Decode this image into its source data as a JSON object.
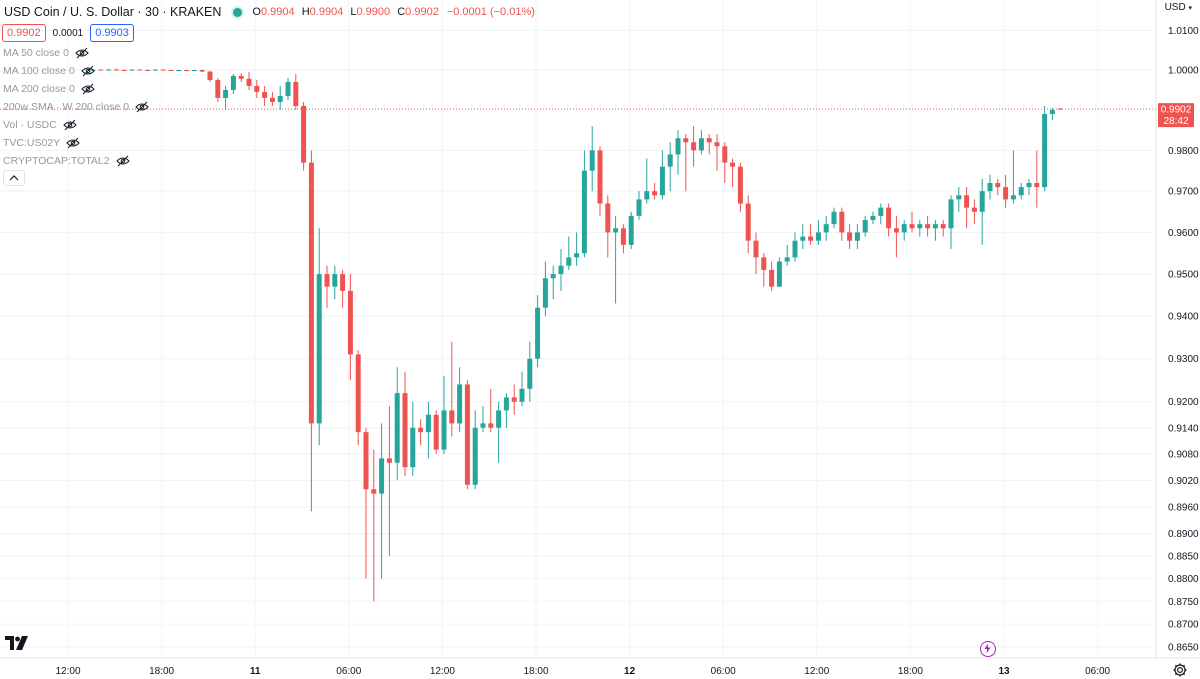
{
  "header": {
    "symbol": "USD Coin / U. S. Dollar · 30 · KRAKEN",
    "open_label": "O",
    "open": "0.9904",
    "high_label": "H",
    "high": "0.9904",
    "low_label": "L",
    "low": "0.9900",
    "close_label": "C",
    "close": "0.9902",
    "change": "−0.0001 (−0.01%)"
  },
  "quote": {
    "bid": "0.9902",
    "spread": "0.0001",
    "ask": "0.9903"
  },
  "indicators": [
    "MA 50 close 0",
    "MA 100 close 0",
    "MA 200 close 0",
    "200w SMA · W 200 close 0",
    "Vol · USDC",
    "TVC:US02Y",
    "CRYPTOCAP:TOTAL2"
  ],
  "axis": {
    "currency": "USD",
    "price_ticks": [
      "1.0100",
      "1.0000",
      "0.9800",
      "0.9700",
      "0.9600",
      "0.9500",
      "0.9400",
      "0.9300",
      "0.9200",
      "0.9140",
      "0.9080",
      "0.9020",
      "0.8960",
      "0.8900",
      "0.8850",
      "0.8800",
      "0.8750",
      "0.8700",
      "0.8650"
    ],
    "time_ticks": [
      "12:00",
      "18:00",
      "11",
      "06:00",
      "12:00",
      "18:00",
      "12",
      "06:00",
      "12:00",
      "18:00",
      "13",
      "06:00"
    ],
    "last_price": "0.9902",
    "countdown": "28:42"
  },
  "colors": {
    "up": "#26a69a",
    "down": "#ef5350",
    "grid": "#f0f3fa",
    "text": "#131722"
  },
  "chart_data": {
    "type": "candlestick",
    "symbol": "USD Coin / U. S. Dollar",
    "interval": "30",
    "exchange": "KRAKEN",
    "y_scale": "log",
    "ylim": [
      0.8625,
      1.0125
    ],
    "last_price": 0.9902,
    "candles": [
      [
        1.0,
        1.0003,
        0.9999,
        1.0001
      ],
      [
        1.0001,
        1.0002,
        0.9999,
        1.0
      ],
      [
        1.0,
        1.0003,
        0.9999,
        1.0001
      ],
      [
        1.0001,
        1.0004,
        0.9999,
        1.0
      ],
      [
        1.0,
        1.0002,
        0.9998,
        0.9999
      ],
      [
        0.9999,
        1.0002,
        0.9998,
        1.0001
      ],
      [
        1.0001,
        1.0002,
        0.9999,
        1.0
      ],
      [
        1.0,
        1.0002,
        0.9998,
        0.9999
      ],
      [
        0.9999,
        1.0002,
        0.9998,
        1.0001
      ],
      [
        1.0001,
        1.0002,
        0.9999,
        1.0
      ],
      [
        1.0,
        1.0001,
        0.9998,
        0.9999
      ],
      [
        0.9999,
        1.0001,
        0.9997,
        1.0
      ],
      [
        1.0,
        1.0001,
        0.9997,
        0.9998
      ],
      [
        0.9998,
        1.0001,
        0.9997,
        1.0
      ],
      [
        1.0,
        1.0001,
        0.9995,
        0.9996
      ],
      [
        0.9996,
        0.9998,
        0.997,
        0.9975
      ],
      [
        0.9975,
        0.998,
        0.992,
        0.993
      ],
      [
        0.993,
        0.996,
        0.99,
        0.995
      ],
      [
        0.995,
        0.999,
        0.994,
        0.9985
      ],
      [
        0.9985,
        0.9992,
        0.997,
        0.9978
      ],
      [
        0.9978,
        0.9995,
        0.995,
        0.996
      ],
      [
        0.996,
        0.9975,
        0.993,
        0.9945
      ],
      [
        0.9945,
        0.996,
        0.991,
        0.993
      ],
      [
        0.993,
        0.9945,
        0.991,
        0.992
      ],
      [
        0.992,
        0.996,
        0.99,
        0.9935
      ],
      [
        0.9935,
        0.998,
        0.9925,
        0.997
      ],
      [
        0.997,
        0.999,
        0.99,
        0.991
      ],
      [
        0.991,
        0.992,
        0.975,
        0.977
      ],
      [
        0.977,
        0.98,
        0.895,
        0.915
      ],
      [
        0.915,
        0.961,
        0.91,
        0.95
      ],
      [
        0.95,
        0.952,
        0.942,
        0.947
      ],
      [
        0.947,
        0.952,
        0.944,
        0.95
      ],
      [
        0.95,
        0.951,
        0.942,
        0.946
      ],
      [
        0.946,
        0.95,
        0.925,
        0.931
      ],
      [
        0.931,
        0.932,
        0.91,
        0.913
      ],
      [
        0.913,
        0.914,
        0.88,
        0.9
      ],
      [
        0.9,
        0.909,
        0.875,
        0.899
      ],
      [
        0.899,
        0.915,
        0.88,
        0.907
      ],
      [
        0.907,
        0.919,
        0.885,
        0.906
      ],
      [
        0.906,
        0.928,
        0.902,
        0.922
      ],
      [
        0.922,
        0.927,
        0.903,
        0.905
      ],
      [
        0.905,
        0.92,
        0.903,
        0.914
      ],
      [
        0.914,
        0.916,
        0.91,
        0.913
      ],
      [
        0.913,
        0.92,
        0.907,
        0.917
      ],
      [
        0.917,
        0.918,
        0.908,
        0.909
      ],
      [
        0.909,
        0.926,
        0.908,
        0.918
      ],
      [
        0.918,
        0.934,
        0.912,
        0.915
      ],
      [
        0.915,
        0.928,
        0.913,
        0.924
      ],
      [
        0.924,
        0.925,
        0.9,
        0.901
      ],
      [
        0.901,
        0.918,
        0.9,
        0.914
      ],
      [
        0.914,
        0.919,
        0.913,
        0.915
      ],
      [
        0.915,
        0.923,
        0.913,
        0.914
      ],
      [
        0.914,
        0.92,
        0.906,
        0.918
      ],
      [
        0.918,
        0.922,
        0.914,
        0.921
      ],
      [
        0.921,
        0.924,
        0.917,
        0.92
      ],
      [
        0.92,
        0.927,
        0.919,
        0.923
      ],
      [
        0.923,
        0.934,
        0.92,
        0.93
      ],
      [
        0.93,
        0.945,
        0.928,
        0.942
      ],
      [
        0.942,
        0.953,
        0.94,
        0.949
      ],
      [
        0.949,
        0.952,
        0.944,
        0.95
      ],
      [
        0.95,
        0.956,
        0.946,
        0.952
      ],
      [
        0.952,
        0.959,
        0.951,
        0.954
      ],
      [
        0.954,
        0.96,
        0.952,
        0.955
      ],
      [
        0.955,
        0.98,
        0.954,
        0.975
      ],
      [
        0.975,
        0.986,
        0.97,
        0.98
      ],
      [
        0.98,
        0.981,
        0.964,
        0.967
      ],
      [
        0.967,
        0.969,
        0.954,
        0.96
      ],
      [
        0.96,
        0.964,
        0.943,
        0.961
      ],
      [
        0.961,
        0.962,
        0.955,
        0.957
      ],
      [
        0.957,
        0.965,
        0.956,
        0.964
      ],
      [
        0.964,
        0.97,
        0.963,
        0.968
      ],
      [
        0.968,
        0.978,
        0.967,
        0.97
      ],
      [
        0.97,
        0.972,
        0.968,
        0.969
      ],
      [
        0.969,
        0.98,
        0.968,
        0.976
      ],
      [
        0.976,
        0.982,
        0.97,
        0.979
      ],
      [
        0.979,
        0.985,
        0.974,
        0.983
      ],
      [
        0.983,
        0.984,
        0.97,
        0.982
      ],
      [
        0.982,
        0.986,
        0.976,
        0.98
      ],
      [
        0.98,
        0.985,
        0.979,
        0.983
      ],
      [
        0.983,
        0.984,
        0.979,
        0.982
      ],
      [
        0.982,
        0.984,
        0.975,
        0.981
      ],
      [
        0.981,
        0.982,
        0.972,
        0.977
      ],
      [
        0.977,
        0.978,
        0.971,
        0.976
      ],
      [
        0.976,
        0.977,
        0.965,
        0.967
      ],
      [
        0.967,
        0.969,
        0.955,
        0.958
      ],
      [
        0.958,
        0.96,
        0.95,
        0.954
      ],
      [
        0.954,
        0.955,
        0.947,
        0.951
      ],
      [
        0.951,
        0.953,
        0.946,
        0.947
      ],
      [
        0.947,
        0.954,
        0.947,
        0.953
      ],
      [
        0.953,
        0.957,
        0.952,
        0.954
      ],
      [
        0.954,
        0.96,
        0.953,
        0.958
      ],
      [
        0.958,
        0.962,
        0.956,
        0.959
      ],
      [
        0.959,
        0.962,
        0.957,
        0.958
      ],
      [
        0.958,
        0.963,
        0.957,
        0.96
      ],
      [
        0.96,
        0.964,
        0.958,
        0.962
      ],
      [
        0.962,
        0.966,
        0.961,
        0.965
      ],
      [
        0.965,
        0.966,
        0.958,
        0.96
      ],
      [
        0.96,
        0.962,
        0.956,
        0.958
      ],
      [
        0.958,
        0.962,
        0.956,
        0.96
      ],
      [
        0.96,
        0.964,
        0.959,
        0.963
      ],
      [
        0.963,
        0.965,
        0.962,
        0.964
      ],
      [
        0.964,
        0.967,
        0.962,
        0.966
      ],
      [
        0.966,
        0.967,
        0.959,
        0.961
      ],
      [
        0.961,
        0.964,
        0.954,
        0.96
      ],
      [
        0.96,
        0.963,
        0.958,
        0.962
      ],
      [
        0.962,
        0.965,
        0.96,
        0.961
      ],
      [
        0.961,
        0.963,
        0.959,
        0.962
      ],
      [
        0.962,
        0.964,
        0.959,
        0.961
      ],
      [
        0.961,
        0.963,
        0.958,
        0.962
      ],
      [
        0.962,
        0.963,
        0.959,
        0.961
      ],
      [
        0.961,
        0.969,
        0.956,
        0.968
      ],
      [
        0.968,
        0.971,
        0.965,
        0.969
      ],
      [
        0.969,
        0.971,
        0.961,
        0.966
      ],
      [
        0.966,
        0.968,
        0.962,
        0.965
      ],
      [
        0.965,
        0.973,
        0.957,
        0.97
      ],
      [
        0.97,
        0.974,
        0.968,
        0.972
      ],
      [
        0.972,
        0.973,
        0.969,
        0.971
      ],
      [
        0.971,
        0.974,
        0.966,
        0.968
      ],
      [
        0.968,
        0.98,
        0.967,
        0.969
      ],
      [
        0.969,
        0.972,
        0.968,
        0.971
      ],
      [
        0.971,
        0.973,
        0.969,
        0.972
      ],
      [
        0.972,
        0.98,
        0.966,
        0.971
      ],
      [
        0.971,
        0.991,
        0.97,
        0.989
      ],
      [
        0.989,
        0.9905,
        0.9875,
        0.99
      ],
      [
        0.9904,
        0.9904,
        0.99,
        0.9902
      ]
    ]
  }
}
